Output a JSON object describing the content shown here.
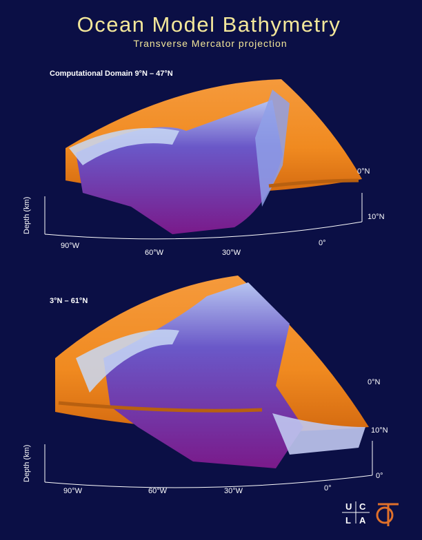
{
  "header": {
    "title": "Ocean Model Bathymetry",
    "subtitle": "Transverse Mercator projection"
  },
  "panels": [
    {
      "label": "Computational Domain  9°N – 47°N",
      "longitude_labels": [
        "90°W",
        "60°W",
        "30°W",
        "0°"
      ],
      "latitude_labels": [
        "0°N",
        "10°N"
      ],
      "depth_label": "Depth (km)"
    },
    {
      "label": "3°N – 61°N",
      "longitude_labels": [
        "90°W",
        "60°W",
        "30°W",
        "0°"
      ],
      "latitude_labels": [
        "0°N",
        "10°N",
        "0°"
      ],
      "depth_label": "Depth (km)"
    }
  ],
  "logo": {
    "letters": [
      "U",
      "C",
      "L",
      "A"
    ]
  }
}
